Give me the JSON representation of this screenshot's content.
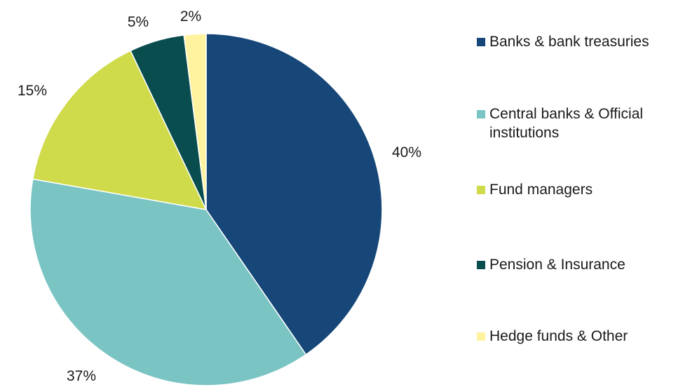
{
  "chart_data": {
    "type": "pie",
    "title": "",
    "categories": [
      "Banks & bank treasuries",
      "Central banks & Official institutions",
      "Fund managers",
      "Pension & Insurance",
      "Hedge funds & Other"
    ],
    "values": [
      40,
      37,
      15,
      5,
      2
    ],
    "value_labels": [
      "40%",
      "37%",
      "15%",
      "5%",
      "2%"
    ],
    "colors": [
      "#164778",
      "#7bc4c4",
      "#cfdb4a",
      "#0a4d4f",
      "#fff3a0"
    ],
    "start_angle_deg": 0,
    "direction": "clockwise",
    "legend_position": "right"
  }
}
